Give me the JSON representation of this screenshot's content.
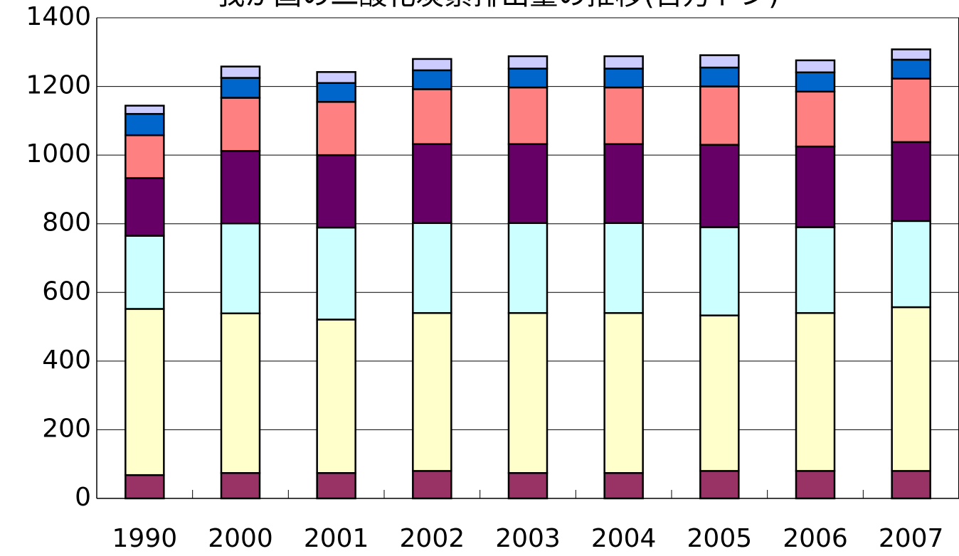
{
  "chart_data": {
    "type": "bar",
    "stacked": true,
    "title": "我が国の二酸化炭素排出量の推移(百万トン)",
    "xlabel": "",
    "ylabel": "",
    "ylim": [
      0,
      1400
    ],
    "yticks": [
      0,
      200,
      400,
      600,
      800,
      1000,
      1200,
      1400
    ],
    "grid": true,
    "legend": "none",
    "categories": [
      "1990",
      "2000",
      "2001",
      "2002",
      "2003",
      "2004",
      "2005",
      "2006",
      "2007"
    ],
    "series": [
      {
        "color": "#993366",
        "values": [
          68,
          74,
          74,
          80,
          74,
          74,
          80,
          80,
          80
        ]
      },
      {
        "color": "#FFFFCC",
        "values": [
          484,
          465,
          447,
          460,
          466,
          466,
          453,
          460,
          477
        ]
      },
      {
        "color": "#CCFFFF",
        "values": [
          213,
          262,
          268,
          262,
          262,
          262,
          257,
          250,
          251
        ]
      },
      {
        "color": "#660066",
        "values": [
          168,
          211,
          211,
          230,
          230,
          230,
          240,
          235,
          230
        ]
      },
      {
        "color": "#FF8080",
        "values": [
          125,
          155,
          155,
          160,
          165,
          165,
          170,
          160,
          185
        ]
      },
      {
        "color": "#0066CC",
        "values": [
          62,
          58,
          55,
          55,
          55,
          55,
          55,
          56,
          55
        ]
      },
      {
        "color": "#CCCCFF",
        "values": [
          24,
          33,
          32,
          33,
          36,
          36,
          36,
          35,
          30
        ]
      }
    ]
  }
}
